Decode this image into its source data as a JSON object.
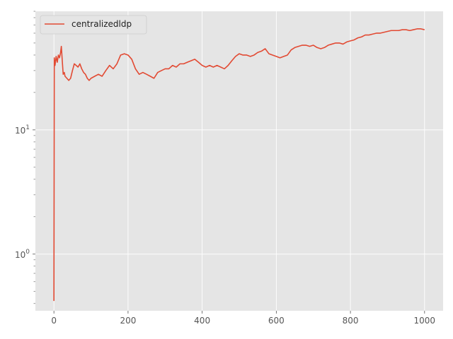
{
  "chart_data": {
    "type": "line",
    "title": "",
    "xlabel": "",
    "ylabel": "",
    "x_scale": "linear",
    "y_scale": "log",
    "xlim": [
      -50,
      1050
    ],
    "ylim": [
      0.35,
      90
    ],
    "x_ticks": [
      0,
      200,
      400,
      600,
      800,
      1000
    ],
    "y_ticks": [
      {
        "value": 1,
        "base": "10",
        "exp": "0"
      },
      {
        "value": 10,
        "base": "10",
        "exp": "1"
      }
    ],
    "grid": true,
    "legend": {
      "position": "upper-left",
      "entries": [
        "centralizedldp"
      ]
    },
    "series": [
      {
        "name": "centralizedldp",
        "color": "#e24a33",
        "points": [
          [
            0,
            0.42
          ],
          [
            1,
            38
          ],
          [
            3,
            33
          ],
          [
            6,
            39
          ],
          [
            9,
            35
          ],
          [
            12,
            40
          ],
          [
            15,
            38
          ],
          [
            18,
            42
          ],
          [
            20,
            47
          ],
          [
            22,
            38
          ],
          [
            25,
            28
          ],
          [
            28,
            29
          ],
          [
            30,
            27
          ],
          [
            35,
            26
          ],
          [
            40,
            25
          ],
          [
            45,
            26
          ],
          [
            50,
            30
          ],
          [
            55,
            34
          ],
          [
            60,
            33
          ],
          [
            65,
            32
          ],
          [
            70,
            34
          ],
          [
            75,
            31
          ],
          [
            80,
            29
          ],
          [
            85,
            28
          ],
          [
            90,
            26
          ],
          [
            95,
            25
          ],
          [
            100,
            26
          ],
          [
            110,
            27
          ],
          [
            120,
            28
          ],
          [
            130,
            27
          ],
          [
            140,
            30
          ],
          [
            150,
            33
          ],
          [
            160,
            31
          ],
          [
            170,
            34
          ],
          [
            180,
            40
          ],
          [
            190,
            41
          ],
          [
            200,
            40
          ],
          [
            210,
            37
          ],
          [
            220,
            31
          ],
          [
            230,
            28
          ],
          [
            240,
            29
          ],
          [
            250,
            28
          ],
          [
            260,
            27
          ],
          [
            270,
            26
          ],
          [
            280,
            29
          ],
          [
            290,
            30
          ],
          [
            300,
            31
          ],
          [
            310,
            31
          ],
          [
            320,
            33
          ],
          [
            330,
            32
          ],
          [
            340,
            34
          ],
          [
            350,
            34
          ],
          [
            360,
            35
          ],
          [
            370,
            36
          ],
          [
            380,
            37
          ],
          [
            390,
            35
          ],
          [
            400,
            33
          ],
          [
            410,
            32
          ],
          [
            420,
            33
          ],
          [
            430,
            32
          ],
          [
            440,
            33
          ],
          [
            450,
            32
          ],
          [
            460,
            31
          ],
          [
            470,
            33
          ],
          [
            480,
            36
          ],
          [
            490,
            39
          ],
          [
            500,
            41
          ],
          [
            510,
            40
          ],
          [
            520,
            40
          ],
          [
            530,
            39
          ],
          [
            540,
            40
          ],
          [
            550,
            42
          ],
          [
            560,
            43
          ],
          [
            570,
            45
          ],
          [
            580,
            41
          ],
          [
            590,
            40
          ],
          [
            600,
            39
          ],
          [
            610,
            38
          ],
          [
            620,
            39
          ],
          [
            630,
            40
          ],
          [
            640,
            44
          ],
          [
            650,
            46
          ],
          [
            660,
            47
          ],
          [
            670,
            48
          ],
          [
            680,
            48
          ],
          [
            690,
            47
          ],
          [
            700,
            48
          ],
          [
            710,
            46
          ],
          [
            720,
            45
          ],
          [
            730,
            46
          ],
          [
            740,
            48
          ],
          [
            750,
            49
          ],
          [
            760,
            50
          ],
          [
            770,
            50
          ],
          [
            780,
            49
          ],
          [
            790,
            51
          ],
          [
            800,
            52
          ],
          [
            810,
            53
          ],
          [
            820,
            55
          ],
          [
            830,
            56
          ],
          [
            840,
            58
          ],
          [
            850,
            58
          ],
          [
            860,
            59
          ],
          [
            870,
            60
          ],
          [
            880,
            60
          ],
          [
            890,
            61
          ],
          [
            900,
            62
          ],
          [
            910,
            63
          ],
          [
            920,
            63
          ],
          [
            930,
            63
          ],
          [
            940,
            64
          ],
          [
            950,
            64
          ],
          [
            960,
            63
          ],
          [
            970,
            64
          ],
          [
            980,
            65
          ],
          [
            990,
            65
          ],
          [
            1000,
            64
          ]
        ]
      }
    ]
  }
}
